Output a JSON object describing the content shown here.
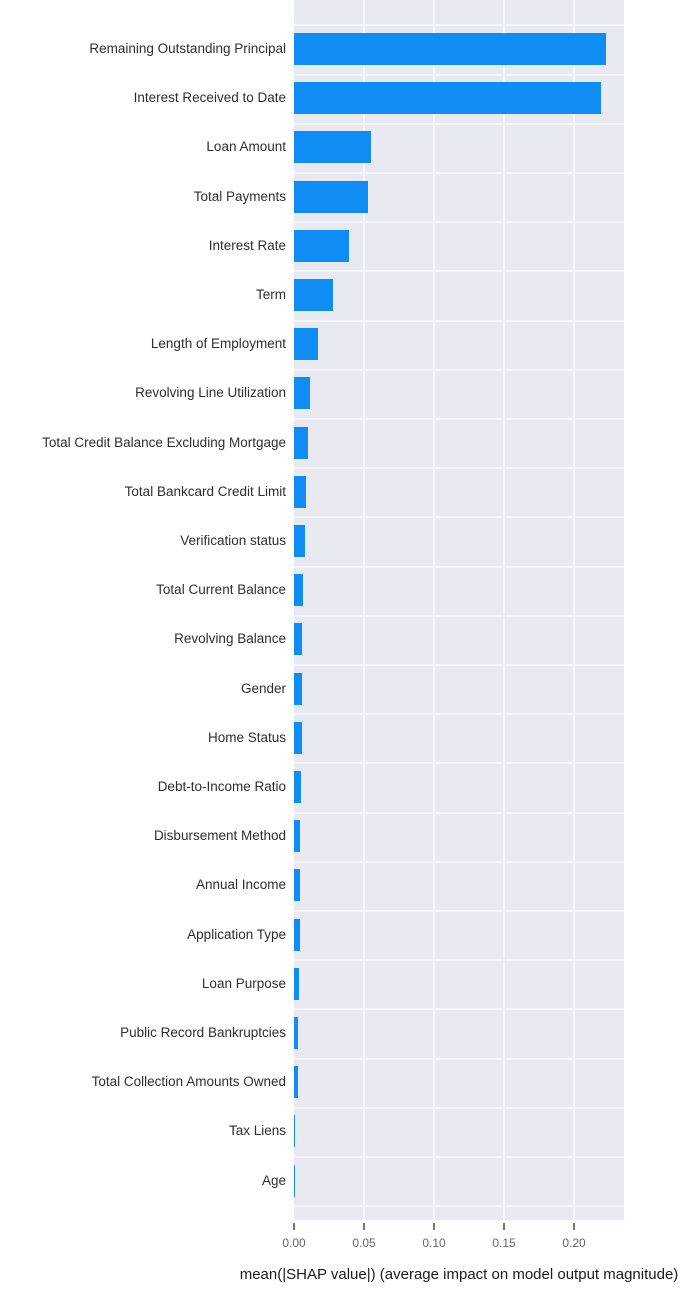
{
  "chart_data": {
    "type": "bar",
    "orientation": "horizontal",
    "title": "",
    "xlabel": "mean(|SHAP value|) (average impact on model output magnitude)",
    "ylabel": "",
    "categories": [
      "Remaining Outstanding Principal",
      "Interest Received to Date",
      "Loan Amount",
      "Total Payments",
      "Interest Rate",
      "Term",
      "Length of Employment",
      "Revolving Line Utilization",
      "Total Credit Balance Excluding Mortgage",
      "Total Bankcard Credit Limit",
      "Verification status",
      "Total Current Balance",
      "Revolving Balance",
      "Gender",
      "Home Status",
      "Debt-to-Income Ratio",
      "Disbursement Method",
      "Annual Income",
      "Application Type",
      "Loan Purpose",
      "Public Record Bankruptcies",
      "Total Collection Amounts Owned",
      "Tax Liens",
      "Age"
    ],
    "values": [
      0.223,
      0.219,
      0.055,
      0.053,
      0.039,
      0.028,
      0.017,
      0.0115,
      0.01,
      0.0087,
      0.0076,
      0.0066,
      0.0058,
      0.0056,
      0.0054,
      0.0048,
      0.0044,
      0.0042,
      0.004,
      0.0036,
      0.003,
      0.0026,
      0.0004,
      0.0002
    ],
    "xlim": [
      0,
      0.2357
    ],
    "xticks": [
      0.0,
      0.05,
      0.1,
      0.15,
      0.2
    ],
    "xtick_labels": [
      "0.00",
      "0.05",
      "0.10",
      "0.15",
      "0.20"
    ],
    "grid": true,
    "legend": false,
    "colors": {
      "bar": "#0F8DF5",
      "plot_background": "#E9E9F1",
      "gridline": "#F5F5FA",
      "tick": "#777777"
    }
  }
}
